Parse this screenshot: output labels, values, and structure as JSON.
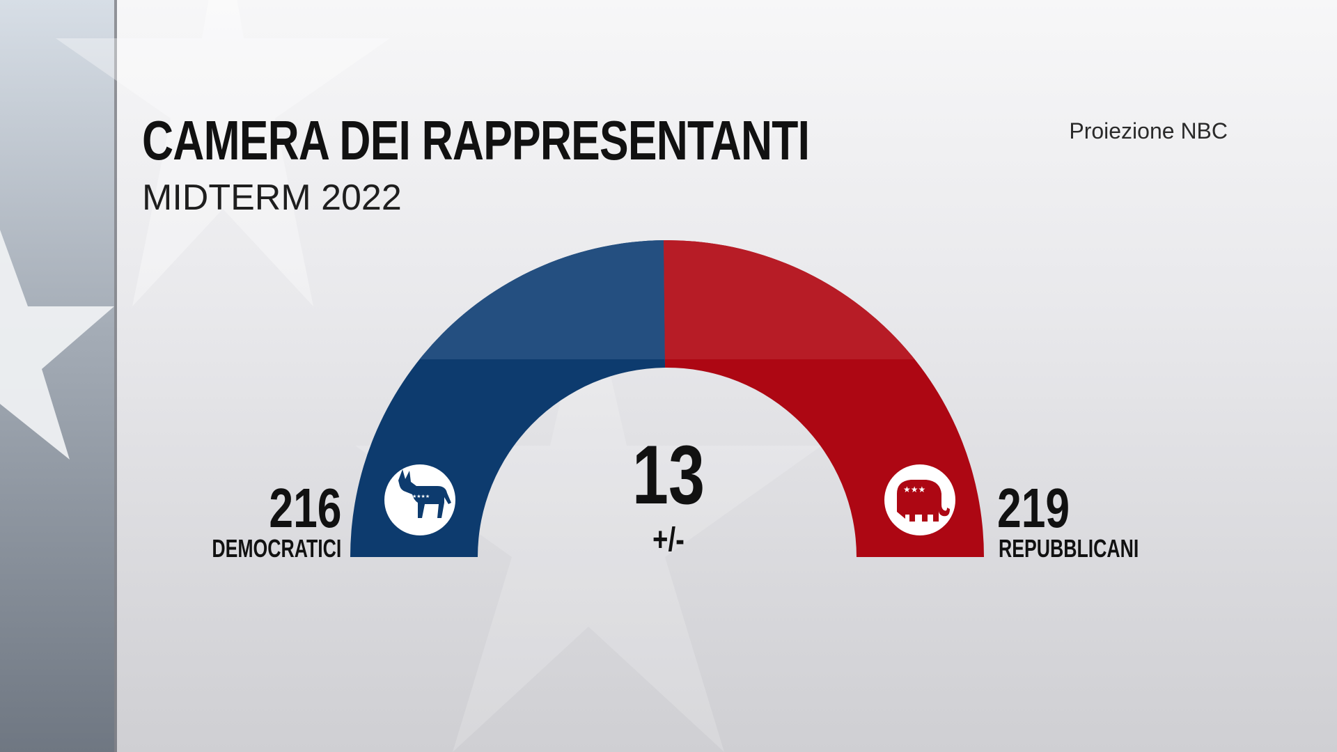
{
  "header": {
    "title": "CAMERA DEI RAPPRESENTANTI",
    "subtitle": "MIDTERM 2022",
    "source": "Proiezione NBC"
  },
  "center": {
    "margin_value": "13",
    "margin_label": "+/-"
  },
  "colors": {
    "democrat": "#0d3b6e",
    "democrat_light": "#244f80",
    "republican": "#ad0713",
    "republican_light": "#b71c26",
    "icon_bg": "#ffffff"
  },
  "icons": {
    "democrat": "donkey-icon",
    "republican": "elephant-icon"
  },
  "chart_data": {
    "type": "pie",
    "title": "CAMERA DEI RAPPRESENTANTI",
    "subtitle": "MIDTERM 2022",
    "categories": [
      "DEMOCRATICI",
      "REPUBBLICANI"
    ],
    "values": [
      216,
      219
    ],
    "labels": [
      "216",
      "219"
    ],
    "uncertainty": "13 +/-",
    "legend": "none"
  }
}
